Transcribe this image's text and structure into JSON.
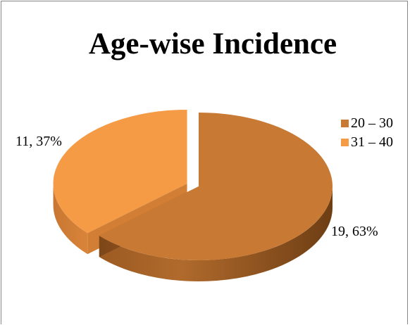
{
  "chart_data": {
    "type": "pie",
    "title": "Age-wise Incidence",
    "categories": [
      "20 – 30",
      "31 – 40"
    ],
    "values": [
      19,
      11
    ],
    "percentages": [
      "63%",
      "37%"
    ],
    "data_labels": [
      "19, 63%",
      "11, 37%"
    ],
    "colors": [
      "#C87A35",
      "#F59A45"
    ],
    "exploded_slice": "31 – 40",
    "three_d": true,
    "legend_position": "right"
  }
}
